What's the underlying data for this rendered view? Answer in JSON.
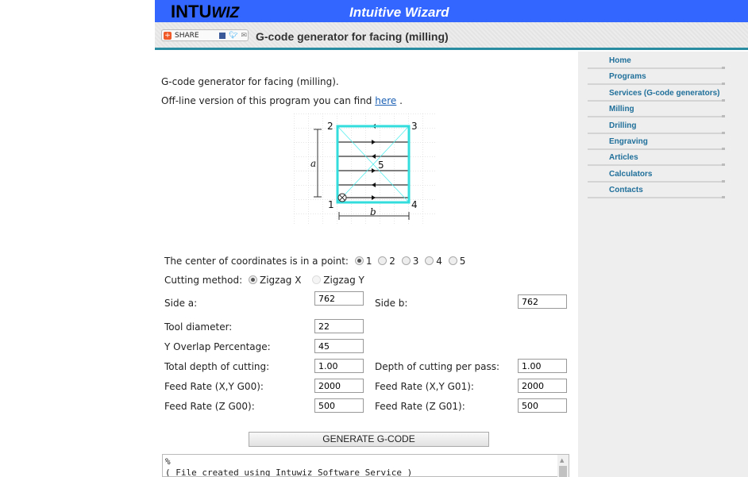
{
  "header": {
    "logo_main": "INTU",
    "logo_italic": "WIZ",
    "tagline": "Intuitive Wizard",
    "share_label": "SHARE",
    "page_title": "G-code generator for facing (milling)"
  },
  "sidebar": {
    "items": [
      {
        "label": "Home"
      },
      {
        "label": "Programs"
      },
      {
        "label": "Services (G-code generators)"
      },
      {
        "label": "Milling"
      },
      {
        "label": "Drilling"
      },
      {
        "label": "Engraving"
      },
      {
        "label": "Articles"
      },
      {
        "label": "Calculators"
      },
      {
        "label": "Contacts"
      }
    ]
  },
  "intro": {
    "heading": "G-code generator for facing (milling).",
    "offline_text": "Off-line version of this program you can find",
    "offline_link": "here",
    "offline_end": "."
  },
  "diagram": {
    "labels": {
      "p1": "1",
      "p2": "2",
      "p3": "3",
      "p4": "4",
      "p5": "5",
      "a": "a",
      "b": "b"
    },
    "accent": "#33dddd"
  },
  "form": {
    "center_label": "The center of coordinates is in a point:",
    "center_options": [
      "1",
      "2",
      "3",
      "4",
      "5"
    ],
    "center_selected": "1",
    "method_label": "Cutting method:",
    "method_options": [
      "Zigzag X",
      "Zigzag Y"
    ],
    "method_selected": "Zigzag X",
    "side_a_label": "Side a:",
    "side_a": "762",
    "side_b_label": "Side b:",
    "side_b": "762",
    "tool_label": "Tool diameter:",
    "tool": "22",
    "overlap_label": "Y Overlap Percentage:",
    "overlap": "45",
    "depth_label": "Total depth of cutting:",
    "depth": "1.00",
    "pass_label": "Depth of cutting per pass:",
    "pass": "1.00",
    "feed_xy_g00_label": "Feed Rate (X,Y G00):",
    "feed_xy_g00": "2000",
    "feed_xy_g01_label": "Feed Rate (X,Y G01):",
    "feed_xy_g01": "2000",
    "feed_z_g00_label": "Feed Rate (Z G00):",
    "feed_z_g00": "500",
    "feed_z_g01_label": "Feed Rate (Z G01):",
    "feed_z_g01": "500",
    "generate_label": "GENERATE G-CODE"
  },
  "output": {
    "lines": [
      "%",
      "( File created using Intuwiz Software Service )"
    ]
  }
}
